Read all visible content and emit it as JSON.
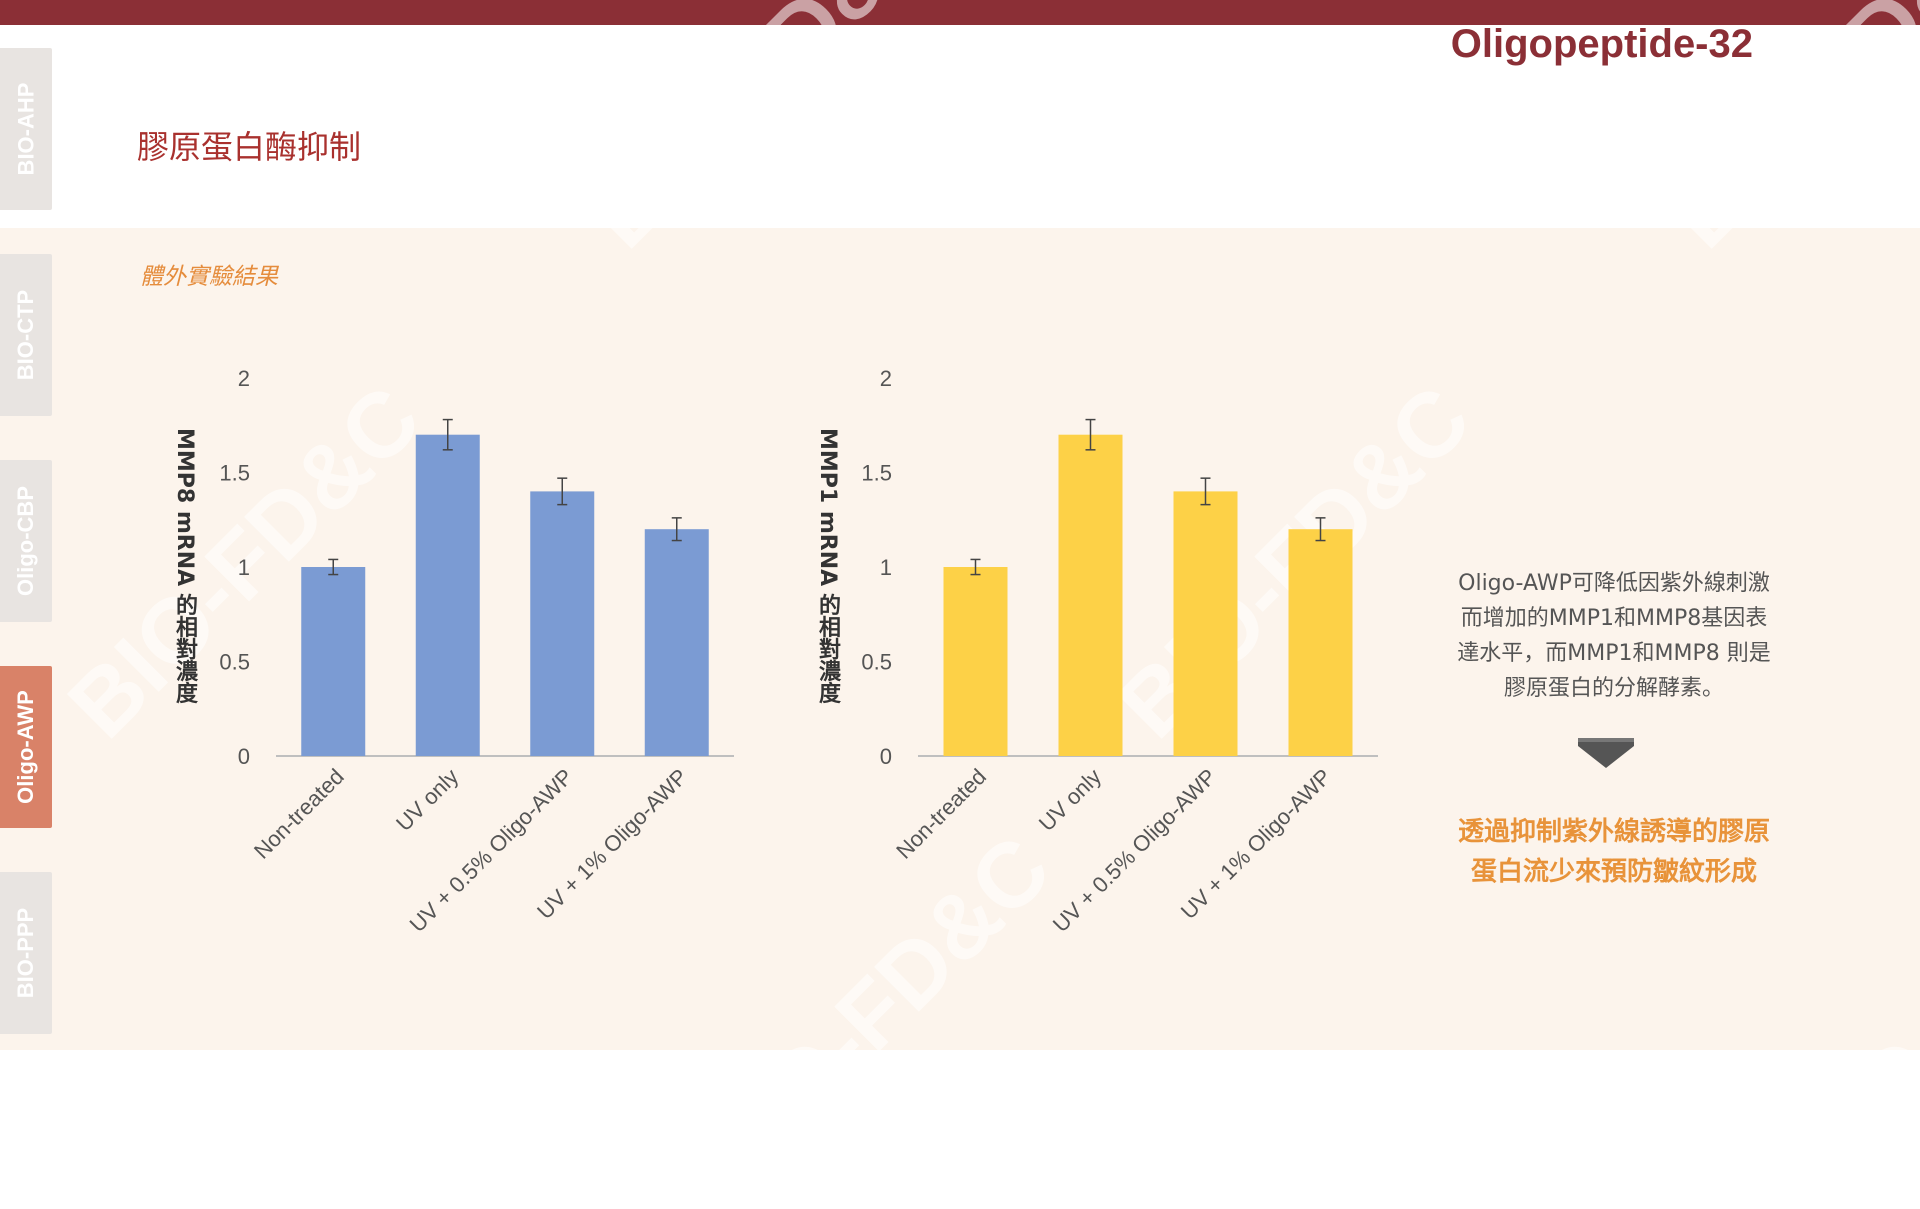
{
  "header": {
    "product_title": "Oligopeptide-32",
    "page_title": "膠原蛋白酶抑制",
    "section_label": "體外實驗結果"
  },
  "sidebar": {
    "tabs": [
      {
        "label": "BIO-AHP",
        "active": false
      },
      {
        "label": "BIO-CTP",
        "active": false
      },
      {
        "label": "Oligo-CBP",
        "active": false
      },
      {
        "label": "Oligo-AWP",
        "active": true
      },
      {
        "label": "BIO-PPP",
        "active": false
      }
    ]
  },
  "watermark_text": "BIO-FD&C",
  "colors": {
    "accent": "#8b2f36",
    "bar_mmp8": "#7b9bd3",
    "bar_mmp1": "#fdd147",
    "conclusion": "#e8933a"
  },
  "chart_data": [
    {
      "type": "bar",
      "categories": [
        "Non-treated",
        "UV only",
        "UV + 0.5% Oligo-AWP",
        "UV + 1% Oligo-AWP"
      ],
      "values": [
        1.0,
        1.7,
        1.4,
        1.2
      ],
      "errors": [
        0.04,
        0.08,
        0.07,
        0.06
      ],
      "ylabel": "MMP8 mRNA 的相對濃度",
      "xlabel": "",
      "ylim": [
        0,
        2
      ],
      "yticks": [
        "0",
        "0.5",
        "1",
        "1.5",
        "2"
      ],
      "color": "#7b9bd3",
      "grid": false
    },
    {
      "type": "bar",
      "categories": [
        "Non-treated",
        "UV only",
        "UV + 0.5% Oligo-AWP",
        "UV + 1% Oligo-AWP"
      ],
      "values": [
        1.0,
        1.7,
        1.4,
        1.2
      ],
      "errors": [
        0.04,
        0.08,
        0.07,
        0.06
      ],
      "ylabel": "MMP1 mRNA 的相對濃度",
      "xlabel": "",
      "ylim": [
        0,
        2
      ],
      "yticks": [
        "0",
        "0.5",
        "1",
        "1.5",
        "2"
      ],
      "color": "#fdd147",
      "grid": false
    }
  ],
  "description": {
    "lines": [
      "Oligo-AWP可降低因紫外線刺激",
      "而增加的MMP1和MMP8基因表",
      "達水平，而MMP1和MMP8 則是",
      "膠原蛋白的分解酵素。"
    ]
  },
  "conclusion": {
    "lines": [
      "透過抑制紫外線誘導的膠原",
      "蛋白流少來預防皺紋形成"
    ]
  }
}
